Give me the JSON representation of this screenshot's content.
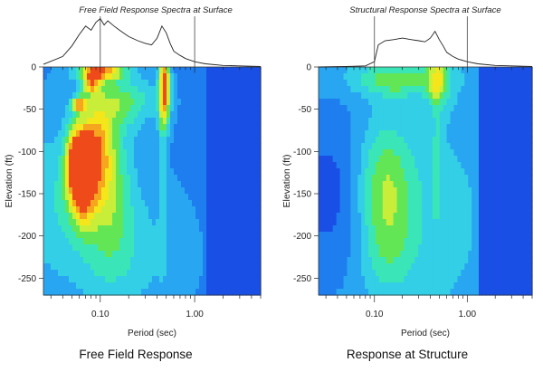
{
  "figure": {
    "captions": [
      "Free Field Response",
      "Response at Structure"
    ]
  },
  "chart_data": [
    {
      "type": "heatmap",
      "title": "Free Field Response Spectra at Surface",
      "caption": "Free Field Response",
      "xlabel": "Period (sec)",
      "ylabel": "Elevation (ft)",
      "x_scale": "log",
      "xlim": [
        0.025,
        5.0
      ],
      "ylim": [
        -270,
        0
      ],
      "x_tick_labels": [
        {
          "value": 0.1,
          "label": "0.10"
        },
        {
          "value": 1.0,
          "label": "1.00"
        }
      ],
      "y_tick_labels": [
        {
          "value": 0,
          "label": "0"
        },
        {
          "value": -50,
          "label": "-50"
        },
        {
          "value": -100,
          "label": "-100"
        },
        {
          "value": -150,
          "label": "-150"
        },
        {
          "value": -200,
          "label": "-200"
        },
        {
          "value": -250,
          "label": "-250"
        }
      ],
      "marker_periods": [
        0.1,
        1.0
      ],
      "color_scale": [
        "#1a4fe6",
        "#1e7ef0",
        "#29a6f2",
        "#33cfe6",
        "#3ae6b8",
        "#63e655",
        "#c8ee3a",
        "#f5e61c",
        "#f5a51e",
        "#ee4a1a"
      ],
      "background_level": 0.18,
      "cold_region": {
        "period_from": 1.35,
        "level": 0.02
      },
      "hotspots": [
        {
          "period": 0.058,
          "elev": -110,
          "sp": 0.12,
          "se": 40,
          "amp": 0.85
        },
        {
          "period": 0.064,
          "elev": -145,
          "sp": 0.14,
          "se": 45,
          "amp": 0.55
        },
        {
          "period": 0.09,
          "elev": -95,
          "sp": 0.16,
          "se": 55,
          "amp": 0.45
        },
        {
          "period": 0.12,
          "elev": -130,
          "sp": 0.25,
          "se": 90,
          "amp": 0.35
        },
        {
          "period": 0.1,
          "elev": -5,
          "sp": 0.25,
          "se": 10,
          "amp": 0.65
        },
        {
          "period": 0.08,
          "elev": -20,
          "sp": 0.1,
          "se": 12,
          "amp": 0.5
        },
        {
          "period": 0.06,
          "elev": -45,
          "sp": 0.08,
          "se": 9,
          "amp": 0.55
        },
        {
          "period": 0.18,
          "elev": -40,
          "sp": 0.35,
          "se": 30,
          "amp": 0.3
        },
        {
          "period": 0.48,
          "elev": -15,
          "sp": 0.06,
          "se": 30,
          "amp": 0.65
        },
        {
          "period": 0.48,
          "elev": -55,
          "sp": 0.06,
          "se": 25,
          "amp": 0.35
        },
        {
          "period": 0.46,
          "elev": -100,
          "sp": 0.05,
          "se": 120,
          "amp": 0.15
        },
        {
          "period": 0.15,
          "elev": -220,
          "sp": 0.6,
          "se": 80,
          "amp": 0.2
        },
        {
          "period": 0.03,
          "elev": -150,
          "sp": 0.3,
          "se": 90,
          "amp": 0.18
        }
      ],
      "surface_spectrum": {
        "period": [
          0.025,
          0.04,
          0.05,
          0.06,
          0.07,
          0.08,
          0.09,
          0.1,
          0.11,
          0.12,
          0.14,
          0.16,
          0.2,
          0.25,
          0.3,
          0.35,
          0.4,
          0.45,
          0.5,
          0.55,
          0.6,
          0.7,
          0.8,
          1.0,
          1.3,
          2.0,
          3.0,
          5.0
        ],
        "sa": [
          0.05,
          0.2,
          0.4,
          0.62,
          0.78,
          0.7,
          0.85,
          0.92,
          0.8,
          0.88,
          0.78,
          0.7,
          0.58,
          0.5,
          0.45,
          0.42,
          0.55,
          0.78,
          0.65,
          0.45,
          0.3,
          0.22,
          0.16,
          0.1,
          0.06,
          0.03,
          0.02,
          0.01
        ]
      }
    },
    {
      "type": "heatmap",
      "title": "Structural Response Spectra at Surface",
      "caption": "Response at Structure",
      "xlabel": "Period (sec)",
      "ylabel": "Elevation (ft)",
      "x_scale": "log",
      "xlim": [
        0.025,
        5.0
      ],
      "ylim": [
        -270,
        0
      ],
      "x_tick_labels": [
        {
          "value": 0.1,
          "label": "0.10"
        },
        {
          "value": 1.0,
          "label": "1.00"
        }
      ],
      "y_tick_labels": [
        {
          "value": 0,
          "label": "0"
        },
        {
          "value": -50,
          "label": "-50"
        },
        {
          "value": -100,
          "label": "-100"
        },
        {
          "value": -150,
          "label": "-150"
        },
        {
          "value": -200,
          "label": "-200"
        },
        {
          "value": -250,
          "label": "-250"
        }
      ],
      "marker_periods": [
        0.1,
        1.0
      ],
      "color_scale": [
        "#1a4fe6",
        "#1e7ef0",
        "#29a6f2",
        "#33cfe6",
        "#3ae6b8",
        "#63e655",
        "#c8ee3a",
        "#f5e61c",
        "#f5a51e",
        "#ee4a1a"
      ],
      "background_level": 0.28,
      "cold_region": {
        "period_from": 1.35,
        "level": 0.02
      },
      "cold_blobs": [
        {
          "period": 0.035,
          "elev": -150,
          "sp": 0.55,
          "se": 120,
          "amp": -0.22
        }
      ],
      "hotspots": [
        {
          "period": 0.125,
          "elev": -130,
          "sp": 0.3,
          "se": 65,
          "amp": 0.32
        },
        {
          "period": 0.13,
          "elev": -210,
          "sp": 0.3,
          "se": 60,
          "amp": 0.22
        },
        {
          "period": 0.16,
          "elev": -15,
          "sp": 0.45,
          "se": 20,
          "amp": 0.3
        },
        {
          "period": 0.48,
          "elev": -15,
          "sp": 0.12,
          "se": 30,
          "amp": 0.38
        },
        {
          "period": 0.47,
          "elev": -100,
          "sp": 0.06,
          "se": 80,
          "amp": 0.12
        },
        {
          "period": 0.3,
          "elev": -180,
          "sp": 0.5,
          "se": 90,
          "amp": 0.08
        }
      ],
      "surface_spectrum": {
        "period": [
          0.025,
          0.05,
          0.08,
          0.1,
          0.11,
          0.13,
          0.16,
          0.2,
          0.25,
          0.3,
          0.35,
          0.4,
          0.45,
          0.5,
          0.55,
          0.6,
          0.7,
          0.8,
          1.0,
          1.3,
          2.0,
          3.0,
          5.0
        ],
        "sa": [
          0.0,
          0.01,
          0.02,
          0.1,
          0.42,
          0.5,
          0.52,
          0.55,
          0.52,
          0.5,
          0.48,
          0.55,
          0.68,
          0.52,
          0.4,
          0.28,
          0.2,
          0.15,
          0.1,
          0.06,
          0.03,
          0.02,
          0.01
        ]
      }
    }
  ]
}
